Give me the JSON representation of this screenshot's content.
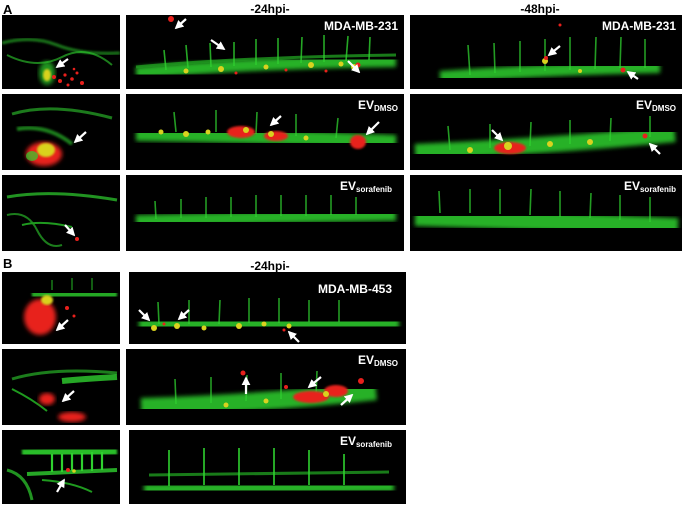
{
  "figure": {
    "section_a": {
      "letter": "A",
      "header_24": "-24hpi-",
      "header_48": "-48hpi-",
      "label_mda231": "MDA-MB-231",
      "label_ev": "EV",
      "sub_dmso": "DMSO",
      "sub_sorafenib": "sorafenib"
    },
    "section_b": {
      "letter": "B",
      "header_24": "-24hpi-",
      "label_mda453": "MDA-MB-453",
      "label_ev": "EV",
      "sub_dmso": "DMSO",
      "sub_sorafenib": "sorafenib"
    },
    "colors": {
      "vessel_green": "#2fd12f",
      "tumor_red": "#e8201c",
      "overlap_yellow": "#d9d21f",
      "arrow": "#ffffff",
      "background": "#000000"
    }
  }
}
